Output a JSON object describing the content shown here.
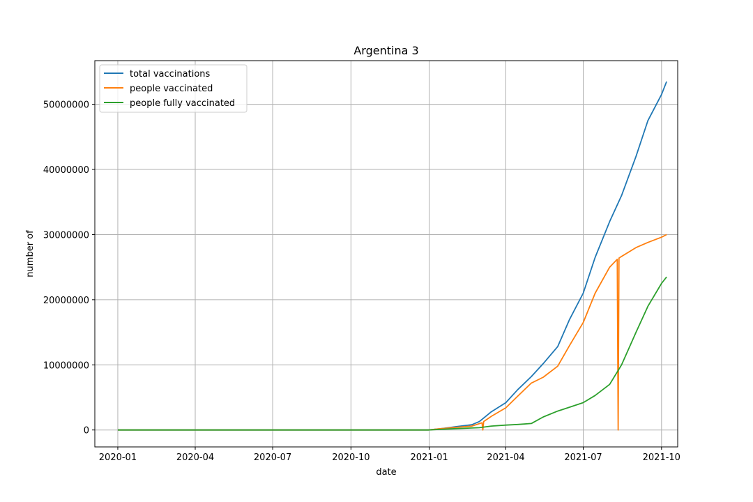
{
  "chart_data": {
    "type": "line",
    "title": "Argentina 3",
    "xlabel": "date",
    "ylabel": "number of",
    "grid": true,
    "legend_position": "top-left",
    "x_range": [
      "2019-12-05",
      "2021-10-20"
    ],
    "ylim": [
      -2600000,
      56700000
    ],
    "x_ticks": [
      "2020-01",
      "2020-04",
      "2020-07",
      "2020-10",
      "2021-01",
      "2021-04",
      "2021-07",
      "2021-10"
    ],
    "x_tick_dates": [
      "2020-01-01",
      "2020-04-01",
      "2020-07-01",
      "2020-10-01",
      "2021-01-01",
      "2021-04-01",
      "2021-07-01",
      "2021-10-01"
    ],
    "y_ticks": [
      0,
      10000000,
      20000000,
      30000000,
      40000000,
      50000000
    ],
    "y_tick_labels": [
      "0",
      "10000000",
      "20000000",
      "30000000",
      "40000000",
      "50000000"
    ],
    "series": [
      {
        "name": "total vaccinations",
        "color": "#1f77b4",
        "points": [
          [
            "2020-01-01",
            0
          ],
          [
            "2020-12-31",
            0
          ],
          [
            "2021-01-15",
            200000
          ],
          [
            "2021-02-01",
            500000
          ],
          [
            "2021-02-20",
            800000
          ],
          [
            "2021-03-01",
            1300000
          ],
          [
            "2021-03-15",
            2800000
          ],
          [
            "2021-04-01",
            4200000
          ],
          [
            "2021-04-15",
            6200000
          ],
          [
            "2021-05-01",
            8200000
          ],
          [
            "2021-05-15",
            10200000
          ],
          [
            "2021-06-01",
            12800000
          ],
          [
            "2021-06-15",
            17000000
          ],
          [
            "2021-07-01",
            21000000
          ],
          [
            "2021-07-15",
            26500000
          ],
          [
            "2021-08-01",
            32000000
          ],
          [
            "2021-08-15",
            36000000
          ],
          [
            "2021-09-01",
            42000000
          ],
          [
            "2021-09-15",
            47500000
          ],
          [
            "2021-10-01",
            51500000
          ],
          [
            "2021-10-07",
            53500000
          ]
        ]
      },
      {
        "name": "people vaccinated",
        "color": "#ff7f0e",
        "points": [
          [
            "2020-01-01",
            0
          ],
          [
            "2020-12-31",
            0
          ],
          [
            "2021-01-15",
            200000
          ],
          [
            "2021-02-01",
            400000
          ],
          [
            "2021-02-20",
            600000
          ],
          [
            "2021-03-04",
            1100000
          ],
          [
            "2021-03-05",
            0
          ],
          [
            "2021-03-06",
            1300000
          ],
          [
            "2021-03-15",
            2100000
          ],
          [
            "2021-04-01",
            3400000
          ],
          [
            "2021-04-15",
            5200000
          ],
          [
            "2021-05-01",
            7200000
          ],
          [
            "2021-05-15",
            8100000
          ],
          [
            "2021-06-01",
            9800000
          ],
          [
            "2021-06-15",
            13000000
          ],
          [
            "2021-07-01",
            16500000
          ],
          [
            "2021-07-15",
            21000000
          ],
          [
            "2021-08-01",
            25000000
          ],
          [
            "2021-08-10",
            26200000
          ],
          [
            "2021-08-11",
            0
          ],
          [
            "2021-08-12",
            26400000
          ],
          [
            "2021-09-01",
            28000000
          ],
          [
            "2021-09-15",
            28800000
          ],
          [
            "2021-10-01",
            29600000
          ],
          [
            "2021-10-07",
            30000000
          ]
        ]
      },
      {
        "name": "people fully vaccinated",
        "color": "#2ca02c",
        "points": [
          [
            "2020-01-01",
            0
          ],
          [
            "2020-12-31",
            0
          ],
          [
            "2021-02-01",
            200000
          ],
          [
            "2021-03-01",
            350000
          ],
          [
            "2021-03-15",
            600000
          ],
          [
            "2021-04-01",
            750000
          ],
          [
            "2021-04-15",
            850000
          ],
          [
            "2021-05-01",
            1000000
          ],
          [
            "2021-05-15",
            2000000
          ],
          [
            "2021-06-01",
            2900000
          ],
          [
            "2021-06-15",
            3500000
          ],
          [
            "2021-07-01",
            4200000
          ],
          [
            "2021-07-15",
            5300000
          ],
          [
            "2021-08-01",
            7000000
          ],
          [
            "2021-08-15",
            10000000
          ],
          [
            "2021-09-01",
            15000000
          ],
          [
            "2021-09-15",
            19000000
          ],
          [
            "2021-10-01",
            22500000
          ],
          [
            "2021-10-07",
            23500000
          ]
        ]
      }
    ]
  }
}
